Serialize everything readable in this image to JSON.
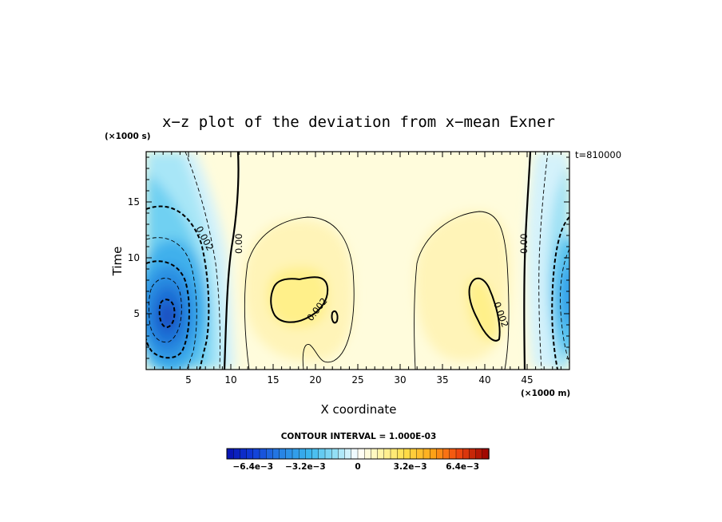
{
  "chart_data": {
    "type": "heatmap",
    "title": "x−z plot of the deviation from x−mean Exner",
    "xlabel": "X coordinate",
    "ylabel": "Time",
    "x_unit": "(×1000 m)",
    "y_unit": "(×1000 s)",
    "time_stamp": "t=810000",
    "xlim": [
      0,
      50
    ],
    "ylim": [
      0,
      19.5
    ],
    "x_ticks": [
      "5",
      "10",
      "15",
      "20",
      "25",
      "30",
      "35",
      "40",
      "45"
    ],
    "y_ticks": [
      "5",
      "10",
      "15"
    ],
    "contour_interval_text": "CONTOUR INTERVAL = 1.000E-03",
    "contour_labels": [
      "0.002",
      "0.00",
      "0.002",
      "0.002",
      "0.00"
    ],
    "colorbar": {
      "min": -0.008,
      "max": 0.008,
      "tick_labels": [
        "−6.4e−3",
        "−3.2e−3",
        "0",
        "3.2e−3",
        "6.4e−3"
      ],
      "tick_values": [
        -0.0064,
        -0.0032,
        0,
        0.0032,
        0.0064
      ]
    },
    "features": [
      {
        "kind": "low",
        "x": 2.6,
        "y": 4.8,
        "value": -0.0068
      },
      {
        "kind": "high",
        "x": 17.8,
        "y": 6.4,
        "value": 0.0028
      },
      {
        "kind": "high",
        "x": 40.0,
        "y": 5.5,
        "value": 0.0027
      },
      {
        "kind": "low",
        "x": 50.0,
        "y": 6.0,
        "value": -0.0045
      }
    ]
  }
}
